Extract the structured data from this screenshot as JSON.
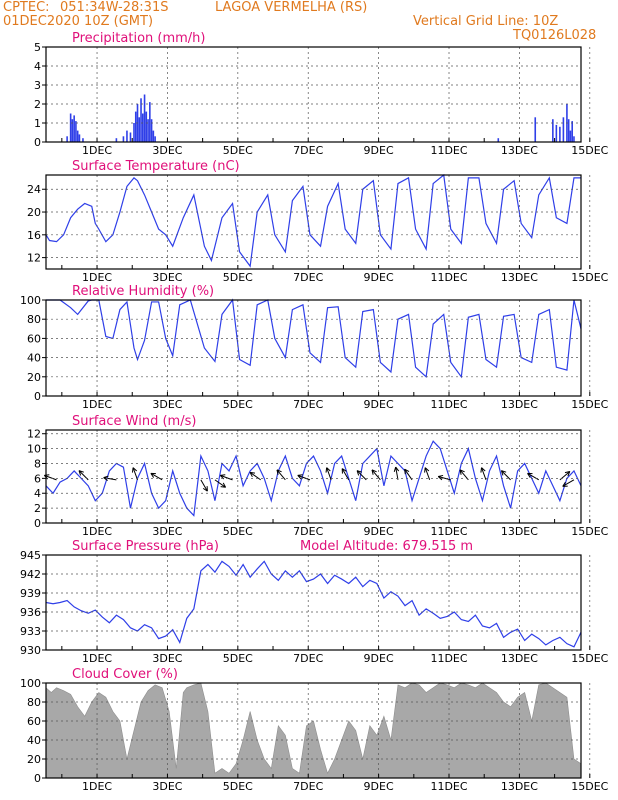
{
  "header": {
    "source": "CPTEC:",
    "coords": "051:34W-28:31S",
    "station": "LAGOA VERMELHA (RS)",
    "run": "01DEC2020 10Z (GMT)",
    "grid_note": "Vertical Grid Line: 10Z",
    "model": "TQ0126L028"
  },
  "colors": {
    "header": "#e07a1f",
    "titles": "#e0107a",
    "line": "#2f3fe8",
    "cloud": "#a8a8a8",
    "grid": "#555555"
  },
  "chart_data": [
    {
      "type": "bar",
      "title": "Precipitation (mm/h)",
      "ylim": [
        0,
        5
      ],
      "yticks": [
        0,
        1,
        2,
        3,
        4,
        5
      ],
      "xlabels": [
        "1DEC",
        "3DEC",
        "5DEC",
        "7DEC",
        "9DEC",
        "11DEC",
        "13DEC",
        "15DEC"
      ],
      "bars": [
        [
          0.6,
          0.3
        ],
        [
          0.7,
          1.5
        ],
        [
          0.75,
          1.2
        ],
        [
          0.8,
          1.4
        ],
        [
          0.85,
          1.1
        ],
        [
          0.9,
          0.6
        ],
        [
          0.95,
          0.4
        ],
        [
          1.05,
          0.2
        ],
        [
          2.0,
          0.2
        ],
        [
          2.2,
          0.3
        ],
        [
          2.3,
          0.6
        ],
        [
          2.4,
          0.5
        ],
        [
          2.5,
          1.0
        ],
        [
          2.55,
          1.6
        ],
        [
          2.6,
          2.0
        ],
        [
          2.65,
          1.3
        ],
        [
          2.7,
          2.3
        ],
        [
          2.75,
          1.5
        ],
        [
          2.8,
          2.5
        ],
        [
          2.85,
          1.6
        ],
        [
          2.9,
          1.2
        ],
        [
          2.95,
          2.1
        ],
        [
          3.0,
          1.2
        ],
        [
          3.05,
          0.6
        ],
        [
          3.1,
          0.3
        ],
        [
          12.85,
          0.2
        ],
        [
          13.9,
          1.3
        ],
        [
          14.4,
          1.2
        ],
        [
          14.5,
          0.9
        ],
        [
          14.6,
          0.8
        ],
        [
          14.7,
          1.3
        ],
        [
          14.8,
          2.0
        ],
        [
          14.85,
          1.2
        ],
        [
          14.9,
          0.6
        ],
        [
          14.95,
          1.1
        ],
        [
          15.0,
          0.3
        ]
      ]
    },
    {
      "type": "line",
      "title": "Surface Temperature (nC)",
      "ylim": [
        10,
        26.5
      ],
      "yticks": [
        12,
        16,
        20,
        24
      ],
      "xlabels": [
        "1DEC",
        "3DEC",
        "5DEC",
        "7DEC",
        "9DEC",
        "11DEC",
        "13DEC",
        "15DEC"
      ],
      "x": [
        0,
        0.1,
        0.3,
        0.5,
        0.7,
        0.9,
        1.1,
        1.3,
        1.4,
        1.5,
        1.7,
        1.9,
        2.1,
        2.3,
        2.5,
        2.6,
        2.8,
        3.0,
        3.2,
        3.4,
        3.6,
        3.9,
        4.2,
        4.5,
        4.7,
        5.0,
        5.3,
        5.5,
        5.8,
        6.0,
        6.3,
        6.5,
        6.8,
        7.0,
        7.3,
        7.5,
        7.8,
        8.0,
        8.3,
        8.5,
        8.8,
        9.0,
        9.3,
        9.5,
        9.8,
        10.0,
        10.3,
        10.5,
        10.8,
        11.0,
        11.3,
        11.5,
        11.8,
        12.0,
        12.3,
        12.5,
        12.8,
        13.0,
        13.3,
        13.5,
        13.8,
        14.0,
        14.3,
        14.5,
        14.8,
        15.0,
        15.2
      ],
      "y": [
        16,
        15,
        14.8,
        16,
        19,
        20.5,
        21.5,
        21,
        18,
        17,
        14.8,
        16,
        20,
        24.5,
        26,
        25.5,
        23,
        20,
        17,
        16,
        14,
        19,
        23,
        14,
        11.5,
        19,
        21.5,
        13,
        10.5,
        20,
        23,
        16,
        13,
        22,
        24.5,
        16,
        14,
        21,
        25,
        17,
        14.5,
        24,
        25.5,
        16,
        13.5,
        25,
        26,
        17,
        13.5,
        25,
        26.5,
        17,
        14.5,
        26,
        26,
        18,
        14.5,
        24,
        25.5,
        18,
        15.5,
        23,
        26,
        19,
        18,
        26,
        26
      ]
    },
    {
      "type": "line",
      "title": "Relative Humidity (%)",
      "ylim": [
        0,
        100
      ],
      "yticks": [
        0,
        20,
        40,
        60,
        80,
        100
      ],
      "xlabels": [
        "1DEC",
        "3DEC",
        "5DEC",
        "7DEC",
        "9DEC",
        "11DEC",
        "13DEC",
        "15DEC"
      ],
      "x": [
        0,
        0.4,
        0.7,
        0.9,
        1.2,
        1.3,
        1.5,
        1.7,
        1.9,
        2.1,
        2.3,
        2.5,
        2.6,
        2.8,
        3.0,
        3.2,
        3.4,
        3.6,
        3.8,
        4.1,
        4.5,
        4.8,
        5.0,
        5.3,
        5.5,
        5.8,
        6.0,
        6.3,
        6.5,
        6.8,
        7.0,
        7.3,
        7.5,
        7.8,
        8.0,
        8.3,
        8.5,
        8.8,
        9.0,
        9.3,
        9.5,
        9.8,
        10.0,
        10.3,
        10.5,
        10.8,
        11.0,
        11.3,
        11.5,
        11.8,
        12.0,
        12.3,
        12.5,
        12.8,
        13.0,
        13.3,
        13.5,
        13.8,
        14.0,
        14.3,
        14.5,
        14.8,
        15.0,
        15.2
      ],
      "y": [
        100,
        100,
        92,
        85,
        99,
        100,
        100,
        62,
        60,
        90,
        98,
        50,
        38,
        58,
        98,
        98,
        60,
        42,
        95,
        100,
        50,
        36,
        85,
        100,
        38,
        32,
        95,
        100,
        60,
        40,
        90,
        95,
        45,
        35,
        92,
        93,
        40,
        30,
        88,
        90,
        35,
        25,
        80,
        85,
        30,
        20,
        75,
        85,
        35,
        20,
        82,
        85,
        38,
        30,
        83,
        85,
        40,
        35,
        85,
        90,
        30,
        27,
        100,
        70
      ]
    },
    {
      "type": "line",
      "title": "Surface Wind (m/s)",
      "ylim": [
        0,
        12.5
      ],
      "yticks": [
        0,
        2,
        4,
        6,
        8,
        10,
        12
      ],
      "xlabels": [
        "1DEC",
        "3DEC",
        "5DEC",
        "7DEC",
        "9DEC",
        "11DEC",
        "13DEC",
        "15DEC"
      ],
      "x": [
        0,
        0.2,
        0.4,
        0.6,
        0.8,
        1.0,
        1.2,
        1.4,
        1.6,
        1.8,
        2.0,
        2.2,
        2.4,
        2.6,
        2.8,
        3.0,
        3.2,
        3.4,
        3.6,
        3.8,
        4.0,
        4.2,
        4.4,
        4.6,
        4.8,
        5.0,
        5.2,
        5.4,
        5.6,
        5.8,
        6.0,
        6.2,
        6.4,
        6.6,
        6.8,
        7.0,
        7.2,
        7.4,
        7.6,
        7.8,
        8.0,
        8.2,
        8.4,
        8.6,
        8.8,
        9.0,
        9.2,
        9.4,
        9.6,
        9.8,
        10.0,
        10.2,
        10.4,
        10.6,
        10.8,
        11.0,
        11.2,
        11.4,
        11.6,
        11.8,
        12.0,
        12.2,
        12.4,
        12.6,
        12.8,
        13.0,
        13.2,
        13.4,
        13.6,
        13.8,
        14.0,
        14.2,
        14.4,
        14.6,
        14.8,
        15.0,
        15.2
      ],
      "y": [
        5,
        4,
        5.5,
        6,
        7,
        6,
        5,
        3,
        4,
        7,
        8,
        7.5,
        2,
        6,
        8,
        4,
        2,
        3,
        7,
        4,
        2,
        1,
        9,
        7,
        3,
        8,
        7,
        9,
        5,
        7,
        8,
        6,
        3,
        7,
        9,
        6,
        5,
        8,
        9,
        7,
        4,
        8,
        9,
        6,
        3,
        8,
        9,
        10,
        5,
        9,
        8,
        7,
        3,
        6,
        9,
        11,
        10,
        7,
        4,
        8,
        10,
        6,
        3,
        7,
        9,
        5,
        2,
        7,
        8,
        6,
        4,
        7,
        5,
        3,
        6,
        7,
        5
      ]
    },
    {
      "type": "line",
      "title": "Surface Pressure (hPa)",
      "annotation": "Model Altitude: 679.515 m",
      "ylim": [
        930,
        945
      ],
      "yticks": [
        930,
        933,
        936,
        939,
        942,
        945
      ],
      "xlabels": [
        "1DEC",
        "3DEC",
        "5DEC",
        "7DEC",
        "9DEC",
        "11DEC",
        "13DEC",
        "15DEC"
      ],
      "x": [
        0,
        0.2,
        0.4,
        0.6,
        0.8,
        1.0,
        1.2,
        1.4,
        1.6,
        1.8,
        2.0,
        2.2,
        2.4,
        2.6,
        2.8,
        3.0,
        3.2,
        3.4,
        3.6,
        3.8,
        4.0,
        4.2,
        4.4,
        4.6,
        4.8,
        5.0,
        5.2,
        5.4,
        5.6,
        5.8,
        6.0,
        6.2,
        6.4,
        6.6,
        6.8,
        7.0,
        7.2,
        7.4,
        7.6,
        7.8,
        8.0,
        8.2,
        8.4,
        8.6,
        8.8,
        9.0,
        9.2,
        9.4,
        9.6,
        9.8,
        10.0,
        10.2,
        10.4,
        10.6,
        10.8,
        11.0,
        11.2,
        11.4,
        11.6,
        11.8,
        12.0,
        12.2,
        12.4,
        12.6,
        12.8,
        13.0,
        13.2,
        13.4,
        13.6,
        13.8,
        14.0,
        14.2,
        14.4,
        14.6,
        14.8,
        15.0,
        15.2
      ],
      "y": [
        937.5,
        937.3,
        937.5,
        937.8,
        936.8,
        936.2,
        935.8,
        936.3,
        935.2,
        934.3,
        935.5,
        934.8,
        933.5,
        933.0,
        934.0,
        933.5,
        931.8,
        932.2,
        933.2,
        931.2,
        935.0,
        936.5,
        942.5,
        943.5,
        942.3,
        944.0,
        943.2,
        941.8,
        943.5,
        941.5,
        942.8,
        944.0,
        942.0,
        941.0,
        942.5,
        941.5,
        942.5,
        940.8,
        941.2,
        942.0,
        940.5,
        941.8,
        941.2,
        940.5,
        941.5,
        940.0,
        941.0,
        940.5,
        938.2,
        939.2,
        938.5,
        937.0,
        937.8,
        935.5,
        936.5,
        935.8,
        935.0,
        935.3,
        936.0,
        934.8,
        934.5,
        935.5,
        933.8,
        933.5,
        934.2,
        932.0,
        932.8,
        933.3,
        931.5,
        932.5,
        931.8,
        930.8,
        931.5,
        932.0,
        931.0,
        930.5,
        932.8
      ]
    },
    {
      "type": "area",
      "title": "Cloud Cover (%)",
      "ylim": [
        0,
        100
      ],
      "yticks": [
        0,
        20,
        40,
        60,
        80,
        100
      ],
      "xlabels": [
        "1DEC",
        "3DEC",
        "5DEC",
        "7DEC",
        "9DEC",
        "11DEC",
        "13DEC",
        "15DEC"
      ],
      "x": [
        0,
        0.15,
        0.3,
        0.5,
        0.7,
        0.9,
        1.0,
        1.1,
        1.3,
        1.5,
        1.7,
        1.9,
        2.1,
        2.3,
        2.5,
        2.7,
        2.9,
        3.1,
        3.3,
        3.5,
        3.7,
        3.9,
        4.0,
        4.2,
        4.4,
        4.6,
        4.8,
        5.0,
        5.2,
        5.4,
        5.6,
        5.8,
        6.0,
        6.2,
        6.4,
        6.6,
        6.8,
        7.0,
        7.2,
        7.4,
        7.6,
        7.8,
        8.0,
        8.2,
        8.4,
        8.6,
        8.8,
        9.0,
        9.2,
        9.4,
        9.6,
        9.8,
        10.0,
        10.2,
        10.4,
        10.6,
        10.8,
        11.0,
        11.2,
        11.4,
        11.6,
        11.8,
        12.0,
        12.2,
        12.4,
        12.6,
        12.8,
        13.0,
        13.2,
        13.4,
        13.6,
        13.8,
        14.0,
        14.2,
        14.4,
        14.6,
        14.8,
        15.0,
        15.2
      ],
      "y": [
        95,
        90,
        95,
        92,
        88,
        75,
        70,
        65,
        80,
        90,
        85,
        70,
        60,
        20,
        50,
        80,
        92,
        98,
        95,
        70,
        10,
        90,
        95,
        98,
        100,
        70,
        5,
        10,
        5,
        15,
        40,
        70,
        40,
        20,
        10,
        55,
        45,
        10,
        5,
        55,
        60,
        30,
        5,
        20,
        40,
        60,
        50,
        20,
        55,
        45,
        65,
        40,
        98,
        95,
        100,
        98,
        90,
        95,
        100,
        98,
        95,
        100,
        98,
        95,
        100,
        95,
        90,
        80,
        75,
        85,
        90,
        60,
        98,
        100,
        95,
        90,
        85,
        20,
        15
      ]
    }
  ]
}
